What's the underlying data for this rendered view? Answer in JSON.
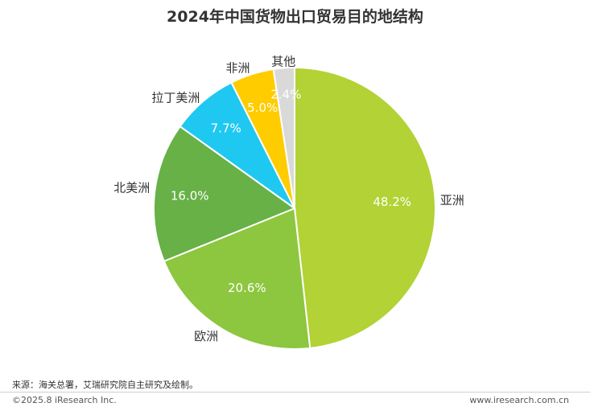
{
  "chart_data": {
    "type": "pie",
    "title": "2024年中国货物出口贸易目的地结构",
    "slices": [
      {
        "label": "亚洲",
        "value": 48.2,
        "value_label": "48.2%",
        "color": "#b2d235"
      },
      {
        "label": "欧洲",
        "value": 20.6,
        "value_label": "20.6%",
        "color": "#8dc63f"
      },
      {
        "label": "北美洲",
        "value": 16.0,
        "value_label": "16.0%",
        "color": "#67b147"
      },
      {
        "label": "拉丁美洲",
        "value": 7.7,
        "value_label": "7.7%",
        "color": "#1fc8f1"
      },
      {
        "label": "非洲",
        "value": 5.0,
        "value_label": "5.0%",
        "color": "#ffcc00"
      },
      {
        "label": "其他",
        "value": 2.4,
        "value_label": "2.4%",
        "color": "#d9d9d9"
      }
    ]
  },
  "footer": {
    "source": "来源：海关总署，艾瑞研究院自主研究及绘制。",
    "copyright": "©2025.8 iResearch Inc.",
    "url": "www.iresearch.com.cn"
  }
}
